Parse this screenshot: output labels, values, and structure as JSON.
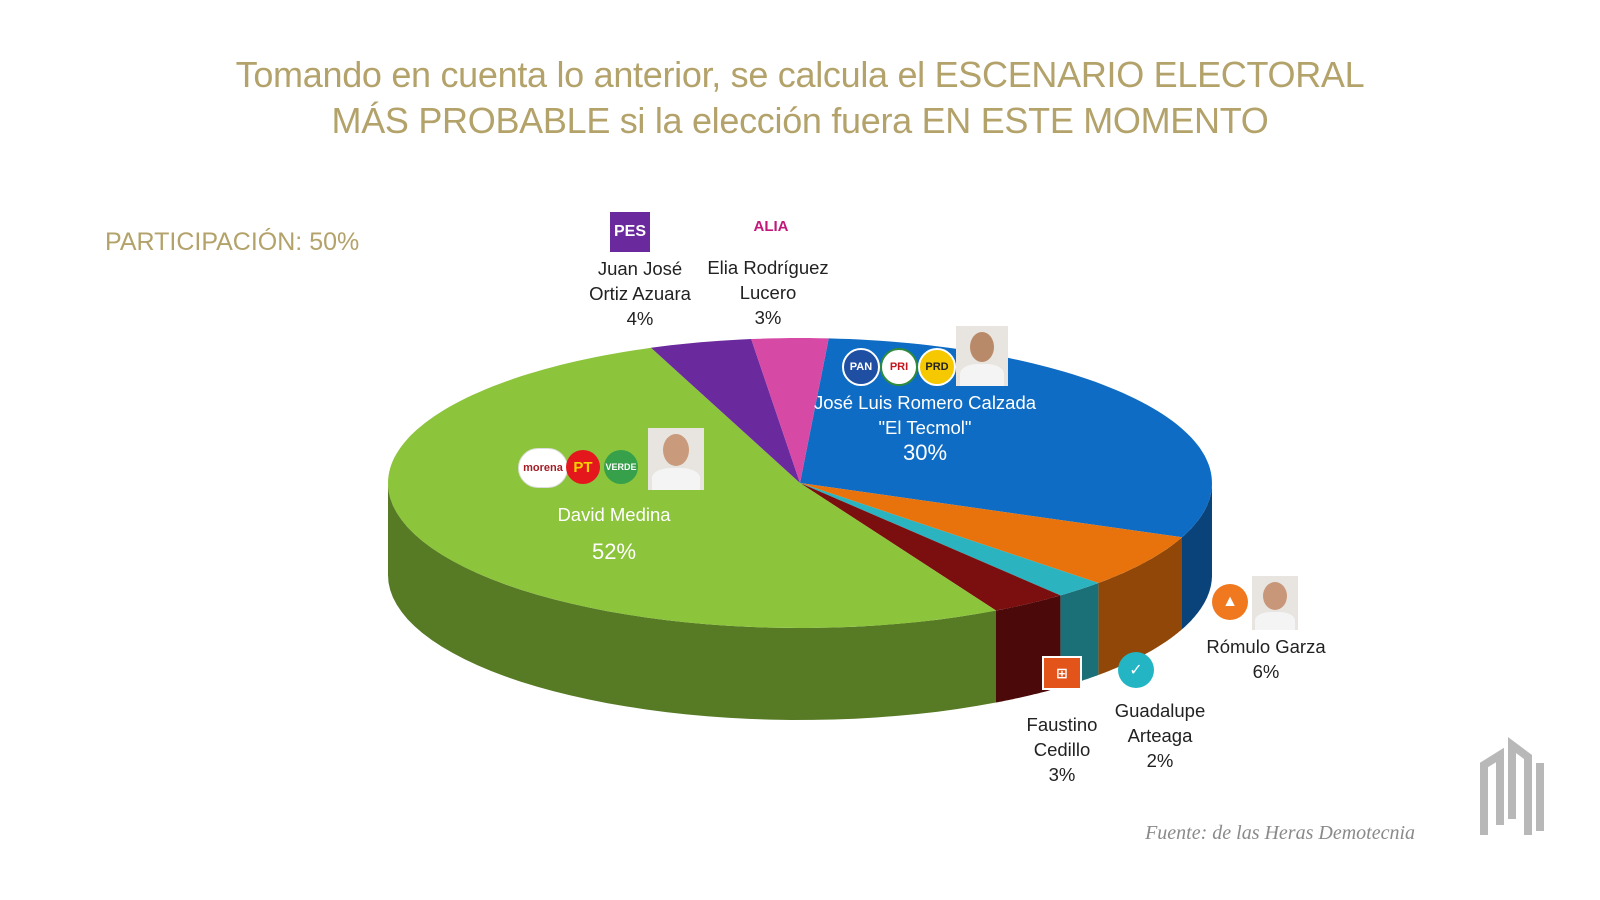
{
  "title_line1": "Tomando en cuenta lo anterior, se calcula el ESCENARIO ELECTORAL",
  "title_line2": "MÁS PROBABLE si la elección fuera EN ESTE MOMENTO",
  "participation": "PARTICIPACIÓN: 50%",
  "source": "Fuente: de las Heras Demotecnia",
  "logos": {
    "pes": "PES",
    "alia": "ALIA",
    "pan": "PAN",
    "pri": "PRI",
    "prd": "PRD",
    "morena": "morena",
    "pt": "PT",
    "verde": "VERDE"
  },
  "chart_data": {
    "type": "pie",
    "title": "Tomando en cuenta lo anterior, se calcula el ESCENARIO ELECTORAL MÁS PROBABLE si la elección fuera EN ESTE MOMENTO",
    "slices": [
      {
        "label": "José Luis Romero Calzada \"El Tecmol\"",
        "value": 30,
        "color": "#0f6cc4"
      },
      {
        "label": "Rómulo Garza",
        "value": 6,
        "color": "#e8730c"
      },
      {
        "label": "Guadalupe Arteaga",
        "value": 2,
        "color": "#2bb3c0"
      },
      {
        "label": "Faustino Cedillo",
        "value": 3,
        "color": "#7b0e0e"
      },
      {
        "label": "David Medina",
        "value": 52,
        "color": "#8cc43c"
      },
      {
        "label": "Juan José Ortiz Azuara",
        "value": 4,
        "color": "#6a2a9e"
      },
      {
        "label": "Elia Rodríguez Lucero",
        "value": 3,
        "color": "#d64aa6"
      }
    ],
    "labels": {
      "tecmol_name": "José Luis Romero Calzada",
      "tecmol_nick": "\"El Tecmol\"",
      "tecmol_pct": "30%",
      "medina_name": "David Medina",
      "medina_pct": "52%",
      "ortiz_l1": "Juan José",
      "ortiz_l2": "Ortiz Azuara",
      "ortiz_pct": "4%",
      "elia_l1": "Elia Rodríguez",
      "elia_l2": "Lucero",
      "elia_pct": "3%",
      "romulo_name": "Rómulo Garza",
      "romulo_pct": "6%",
      "guadalupe_l1": "Guadalupe",
      "guadalupe_l2": "Arteaga",
      "guadalupe_pct": "2%",
      "faustino_l1": "Faustino",
      "faustino_l2": "Cedillo",
      "faustino_pct": "3%"
    }
  }
}
